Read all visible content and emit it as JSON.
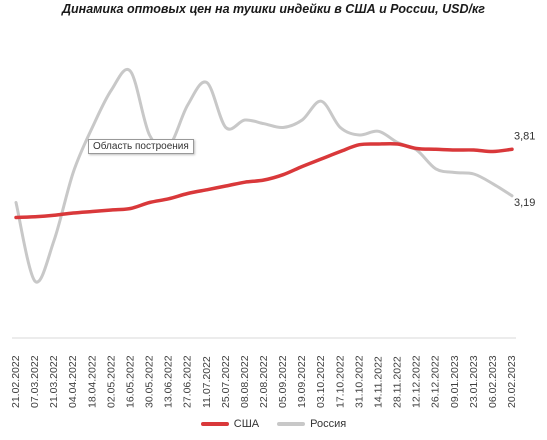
{
  "chart_data": {
    "type": "line",
    "title": "Динамика оптовых цен на тушки индейки в США и России, USD/кг",
    "tooltip": "Область построения",
    "categories": [
      "21.02.2022",
      "07.03.2022",
      "21.03.2022",
      "04.04.2022",
      "18.04.2022",
      "02.05.2022",
      "16.05.2022",
      "30.05.2022",
      "13.06.2022",
      "27.06.2022",
      "11.07.2022",
      "25.07.2022",
      "08.08.2022",
      "22.08.2022",
      "05.09.2022",
      "19.09.2022",
      "03.10.2022",
      "17.10.2022",
      "31.10.2022",
      "14.11.2022",
      "28.11.2022",
      "12.12.2022",
      "26.12.2022",
      "09.01.2023",
      "23.01.2023",
      "06.02.2023",
      "20.02.2023"
    ],
    "series": [
      {
        "name": "США",
        "color": "#d9383a",
        "end_label": "3,81",
        "values": [
          2.9,
          2.91,
          2.93,
          2.96,
          2.98,
          3.0,
          3.02,
          3.1,
          3.15,
          3.22,
          3.27,
          3.32,
          3.37,
          3.4,
          3.47,
          3.58,
          3.68,
          3.78,
          3.87,
          3.88,
          3.88,
          3.82,
          3.81,
          3.8,
          3.8,
          3.78,
          3.81
        ]
      },
      {
        "name": "Россия",
        "color": "#c8c8c8",
        "end_label": "3,19",
        "values": [
          3.1,
          2.05,
          2.6,
          3.5,
          4.1,
          4.6,
          4.85,
          4.0,
          3.85,
          4.4,
          4.7,
          4.1,
          4.2,
          4.15,
          4.1,
          4.2,
          4.45,
          4.1,
          4.0,
          4.05,
          3.9,
          3.8,
          3.55,
          3.5,
          3.48,
          3.35,
          3.19
        ]
      }
    ],
    "ylim": [
      1.4,
      5.4
    ],
    "grid": false,
    "legend_position": "bottom"
  }
}
